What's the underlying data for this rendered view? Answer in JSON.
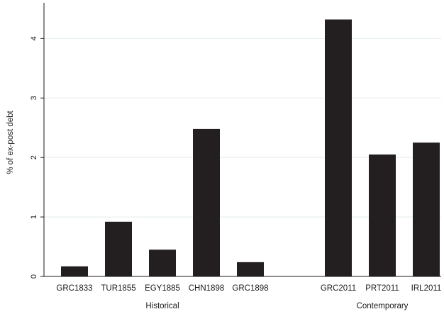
{
  "chart_data": {
    "type": "bar",
    "title": "",
    "ylabel": "% of ex-post debt",
    "ylim": [
      0,
      4.6
    ],
    "yticks": [
      0,
      1,
      2,
      3,
      4
    ],
    "grid": true,
    "bar_color": "#231f20",
    "grid_color": "#e3ecee",
    "groups": [
      {
        "label": "Historical",
        "categories": [
          "GRC1833",
          "TUR1855",
          "EGY1885",
          "CHN1898",
          "GRC1898"
        ],
        "values": [
          0.17,
          0.92,
          0.45,
          2.48,
          0.24
        ]
      },
      {
        "label": "Contemporary",
        "categories": [
          "GRC2011",
          "PRT2011",
          "IRL2011"
        ],
        "values": [
          4.32,
          2.05,
          2.25
        ]
      }
    ]
  }
}
